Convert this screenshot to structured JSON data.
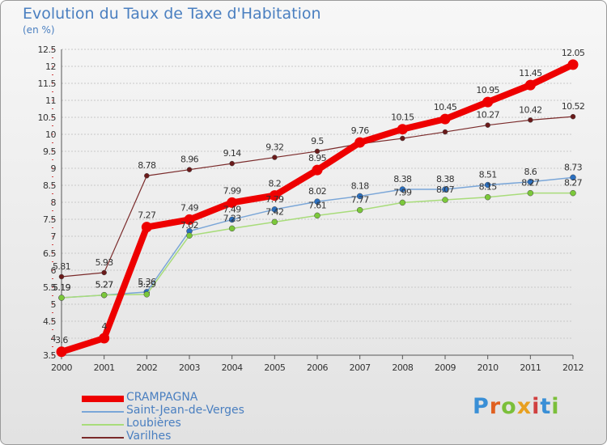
{
  "title": "Evolution du Taux de Taxe d'Habitation",
  "subtitle": "(en %)",
  "logo": {
    "letters": [
      "P",
      "r",
      "o",
      "x",
      "i",
      "t",
      "i"
    ],
    "colors": [
      "#3a8fd6",
      "#e06020",
      "#7bbf3a",
      "#e8a020",
      "#d04040",
      "#3a8fd6",
      "#7bbf3a"
    ]
  },
  "chart_data": {
    "type": "line",
    "x": [
      2000,
      2001,
      2002,
      2003,
      2004,
      2005,
      2006,
      2007,
      2008,
      2009,
      2010,
      2011,
      2012
    ],
    "ylim": [
      3.5,
      12.5
    ],
    "yticks": [
      3.5,
      4,
      4.5,
      5,
      5.5,
      6,
      6.5,
      7,
      7.5,
      8,
      8.5,
      9,
      9.5,
      10,
      10.5,
      11,
      11.5,
      12,
      12.5
    ],
    "grid": "horizontal",
    "legend_position": "bottom-left",
    "series": [
      {
        "name": "CRAMPAGNA",
        "color": "#ee0000",
        "width": 8,
        "marker": 6.5,
        "values": [
          3.6,
          4.0,
          7.27,
          7.49,
          7.99,
          8.2,
          8.95,
          9.76,
          10.15,
          10.45,
          10.95,
          11.45,
          12.05
        ],
        "labels": [
          "3.6",
          "4",
          "7.27",
          "7.49",
          "7.99",
          "8.2",
          "8.95",
          "9.76",
          "10.15",
          "10.45",
          "10.95",
          "11.45",
          "12.05"
        ]
      },
      {
        "name": "Saint-Jean-de-Verges",
        "color": "#7aa6d8",
        "width": 1.5,
        "marker": 3.5,
        "marker_color": "#2a6fc0",
        "values": [
          5.19,
          5.27,
          5.36,
          7.15,
          7.49,
          7.79,
          8.02,
          8.18,
          8.38,
          8.38,
          8.51,
          8.6,
          8.73
        ],
        "labels": [
          "5.19",
          "5.27",
          "5.36",
          "",
          "7.49",
          "7.79",
          "8.02",
          "8.18",
          "8.38",
          "8.38",
          "8.51",
          "8.6",
          "8.73"
        ]
      },
      {
        "name": "Loubières",
        "color": "#a8dc7a",
        "width": 1.5,
        "marker": 3.5,
        "marker_color": "#7bc83a",
        "values": [
          5.19,
          5.27,
          5.29,
          7.02,
          7.23,
          7.42,
          7.61,
          7.77,
          7.99,
          8.07,
          8.15,
          8.27,
          8.27
        ],
        "labels": [
          "5.19",
          "5.27",
          "5.29",
          "7.02",
          "7.23",
          "7.42",
          "7.61",
          "7.77",
          "7.99",
          "8.07",
          "8.15",
          "8.27",
          "8.27"
        ]
      },
      {
        "name": "Varilhes",
        "color": "#7a2a2a",
        "width": 1.2,
        "marker": 3,
        "marker_color": "#6a1a1a",
        "values": [
          5.81,
          5.93,
          8.78,
          8.96,
          9.14,
          9.32,
          9.5,
          9.72,
          9.88,
          10.07,
          10.27,
          10.42,
          10.52
        ],
        "labels": [
          "5.81",
          "5.93",
          "8.78",
          "8.96",
          "9.14",
          "9.32",
          "9.5",
          "",
          "",
          "",
          "10.27",
          "10.42",
          "10.52"
        ]
      }
    ]
  }
}
